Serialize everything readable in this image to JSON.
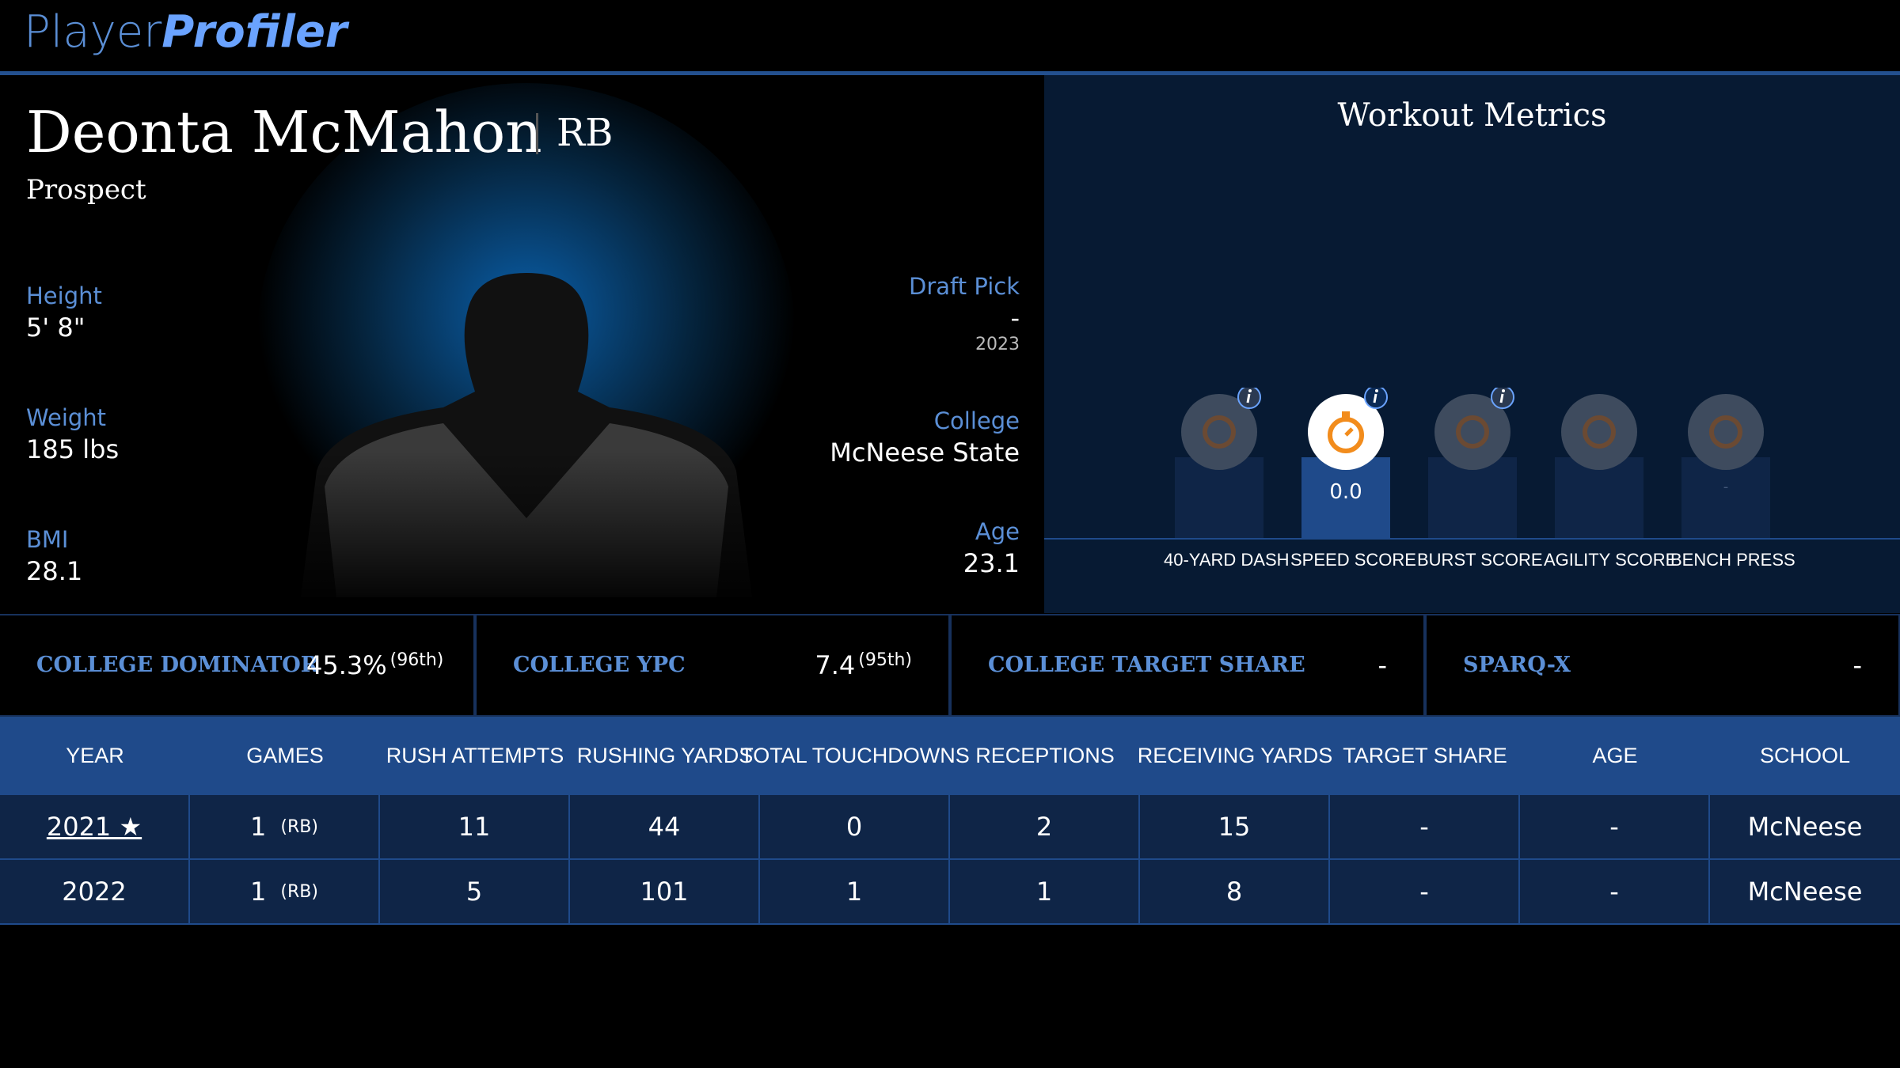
{
  "header": {
    "logo_player": "Player",
    "logo_profiler": "Profiler"
  },
  "profile": {
    "name": "Deonta McMahon",
    "position": "RB",
    "status": "Prospect",
    "left": [
      {
        "label": "Height",
        "value": "5' 8\""
      },
      {
        "label": "Weight",
        "value": "185 lbs"
      },
      {
        "label": "BMI",
        "value": "28.1"
      }
    ],
    "right": [
      {
        "label": "Draft Pick",
        "value": "-",
        "sub": "2023"
      },
      {
        "label": "College",
        "value": "McNeese State"
      },
      {
        "label": "Age",
        "value": "23.1"
      }
    ]
  },
  "workout": {
    "title": "Workout Metrics",
    "metrics": [
      {
        "label": "40-YARD DASH"
      },
      {
        "label": "SPEED SCORE",
        "value": "0.0"
      },
      {
        "label": "BURST SCORE"
      },
      {
        "label": "AGILITY SCORE"
      },
      {
        "label": "BENCH PRESS",
        "value": "-"
      }
    ]
  },
  "stats": [
    {
      "label": "COLLEGE DOMINATOR",
      "value": "45.3%",
      "rank": "(96th)"
    },
    {
      "label": "COLLEGE YPC",
      "value": "7.4",
      "rank": "(95th)"
    },
    {
      "label": "COLLEGE TARGET SHARE",
      "value": "-"
    },
    {
      "label": "SPARQ-X",
      "value": "-"
    }
  ],
  "table": {
    "columns": [
      "YEAR",
      "GAMES",
      "RUSH ATTEMPTS",
      "RUSHING YARDS",
      "TOTAL TOUCHDOWNS",
      "RECEPTIONS",
      "RECEIVING YARDS",
      "TARGET SHARE",
      "AGE",
      "SCHOOL"
    ],
    "rows": [
      {
        "year": "2021 ★",
        "games": "1",
        "pos": "(RB)",
        "cells": [
          "11",
          "44",
          "0",
          "2",
          "15",
          "-",
          "-",
          "McNeese"
        ]
      },
      {
        "year": "2022",
        "games": "1",
        "pos": "(RB)",
        "cells": [
          "5",
          "101",
          "1",
          "1",
          "8",
          "-",
          "-",
          "McNeese"
        ]
      }
    ]
  }
}
